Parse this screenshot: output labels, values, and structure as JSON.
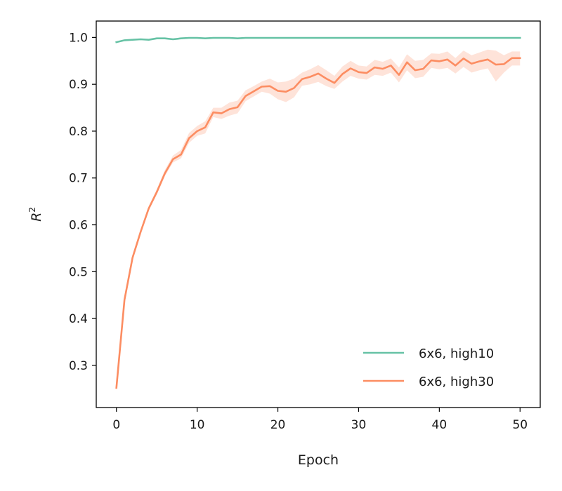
{
  "chart_data": {
    "type": "line",
    "xlabel": "Epoch",
    "ylabel_base": "R",
    "ylabel_sup": "2",
    "xlim": [
      -2.5,
      52.5
    ],
    "ylim": [
      0.21,
      1.035
    ],
    "xticks": [
      0,
      10,
      20,
      30,
      40,
      50
    ],
    "xtick_labels": [
      "0",
      "10",
      "20",
      "30",
      "40",
      "50"
    ],
    "yticks": [
      0.3,
      0.4,
      0.5,
      0.6,
      0.7,
      0.8,
      0.9,
      1.0
    ],
    "ytick_labels": [
      "0.3",
      "0.4",
      "0.5",
      "0.6",
      "0.7",
      "0.8",
      "0.9",
      "1.0"
    ],
    "grid": false,
    "legend_position": "lower-right",
    "x": [
      0,
      1,
      2,
      3,
      4,
      5,
      6,
      7,
      8,
      9,
      10,
      11,
      12,
      13,
      14,
      15,
      16,
      17,
      18,
      19,
      20,
      21,
      22,
      23,
      24,
      25,
      26,
      27,
      28,
      29,
      30,
      31,
      32,
      33,
      34,
      35,
      36,
      37,
      38,
      39,
      40,
      41,
      42,
      43,
      44,
      45,
      46,
      47,
      48,
      49,
      50
    ],
    "series": [
      {
        "name": "6x6, high10",
        "color": "#66c2a5",
        "values": [
          0.99,
          0.994,
          0.995,
          0.996,
          0.995,
          0.998,
          0.998,
          0.996,
          0.998,
          0.999,
          0.999,
          0.998,
          0.999,
          0.999,
          0.999,
          0.998,
          0.999,
          0.999,
          0.999,
          0.999,
          0.999,
          0.999,
          0.999,
          0.999,
          0.999,
          0.999,
          0.999,
          0.999,
          0.999,
          0.999,
          0.999,
          0.999,
          0.999,
          0.999,
          0.999,
          0.999,
          0.999,
          0.999,
          0.999,
          0.999,
          0.999,
          0.999,
          0.999,
          0.999,
          0.999,
          0.999,
          0.999,
          0.999,
          0.999,
          0.999,
          0.999
        ],
        "band_low": [],
        "band_high": []
      },
      {
        "name": "6x6, high30",
        "color": "#fc8d62",
        "band_color": "#fdd9cc",
        "values": [
          0.252,
          0.44,
          0.53,
          0.585,
          0.635,
          0.67,
          0.71,
          0.74,
          0.75,
          0.785,
          0.8,
          0.808,
          0.84,
          0.838,
          0.847,
          0.851,
          0.875,
          0.885,
          0.895,
          0.896,
          0.886,
          0.884,
          0.892,
          0.911,
          0.916,
          0.923,
          0.912,
          0.903,
          0.922,
          0.934,
          0.926,
          0.924,
          0.936,
          0.933,
          0.94,
          0.92,
          0.947,
          0.93,
          0.933,
          0.951,
          0.949,
          0.953,
          0.94,
          0.955,
          0.944,
          0.949,
          0.953,
          0.942,
          0.943,
          0.956,
          0.956
        ],
        "band_low": [
          0.25,
          0.435,
          0.525,
          0.58,
          0.63,
          0.665,
          0.704,
          0.733,
          0.742,
          0.775,
          0.79,
          0.795,
          0.83,
          0.826,
          0.833,
          0.838,
          0.864,
          0.874,
          0.884,
          0.88,
          0.868,
          0.862,
          0.872,
          0.897,
          0.9,
          0.905,
          0.896,
          0.89,
          0.906,
          0.918,
          0.912,
          0.91,
          0.92,
          0.918,
          0.925,
          0.904,
          0.93,
          0.913,
          0.916,
          0.935,
          0.932,
          0.935,
          0.923,
          0.937,
          0.925,
          0.93,
          0.934,
          0.906,
          0.925,
          0.94,
          0.94
        ],
        "band_high": [
          0.254,
          0.445,
          0.535,
          0.59,
          0.64,
          0.676,
          0.717,
          0.748,
          0.76,
          0.796,
          0.811,
          0.821,
          0.85,
          0.85,
          0.861,
          0.865,
          0.887,
          0.896,
          0.906,
          0.912,
          0.904,
          0.906,
          0.912,
          0.925,
          0.932,
          0.941,
          0.93,
          0.918,
          0.938,
          0.95,
          0.94,
          0.938,
          0.952,
          0.948,
          0.955,
          0.936,
          0.964,
          0.95,
          0.952,
          0.966,
          0.965,
          0.97,
          0.956,
          0.972,
          0.962,
          0.968,
          0.974,
          0.972,
          0.962,
          0.97,
          0.97
        ]
      }
    ]
  }
}
